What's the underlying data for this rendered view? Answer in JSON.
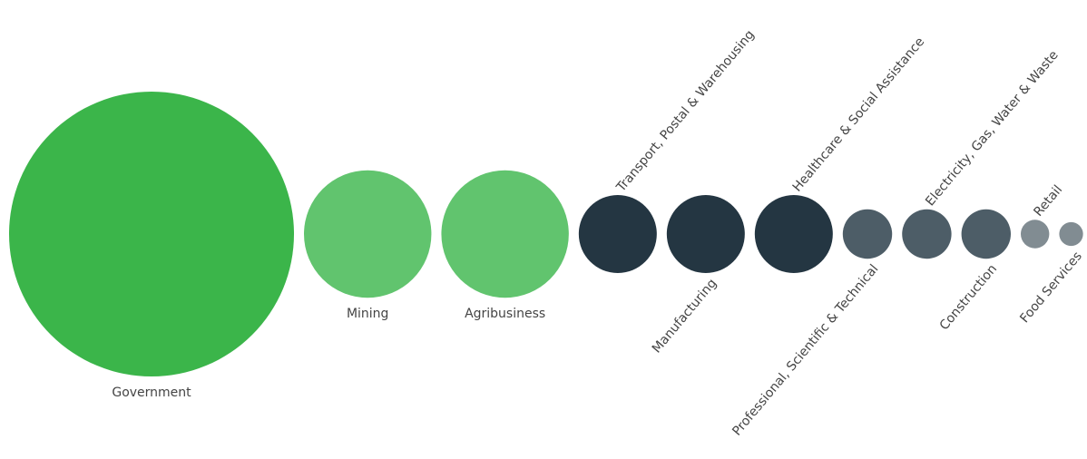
{
  "chart_data": {
    "type": "bubble",
    "title": "",
    "bubbles": [
      {
        "name": "Government",
        "size": 100,
        "tier": "high",
        "color": "#3bb54a"
      },
      {
        "name": "Mining",
        "size": 20,
        "tier": "medium",
        "color": "#61c46e"
      },
      {
        "name": "Agribusiness",
        "size": 20,
        "tier": "medium",
        "color": "#61c46e"
      },
      {
        "name": "Transport, Postal & Warehousing",
        "size": 7.5,
        "tier": "dark",
        "color": "#243642"
      },
      {
        "name": "Manufacturing",
        "size": 7.5,
        "tier": "dark",
        "color": "#243642"
      },
      {
        "name": "Healthcare & Social Assistance",
        "size": 7.5,
        "tier": "dark",
        "color": "#243642"
      },
      {
        "name": "Professional, Scientific & Technical",
        "size": 3,
        "tier": "slate",
        "color": "#4d5d67"
      },
      {
        "name": "Electricity, Gas, Water & Waste",
        "size": 3,
        "tier": "slate",
        "color": "#4d5d67"
      },
      {
        "name": "Construction",
        "size": 3,
        "tier": "slate",
        "color": "#4d5d67"
      },
      {
        "name": "Retail",
        "size": 1,
        "tier": "gray",
        "color": "#818c92"
      },
      {
        "name": "Food Services",
        "size": 0.7,
        "tier": "gray",
        "color": "#818c92"
      }
    ]
  }
}
